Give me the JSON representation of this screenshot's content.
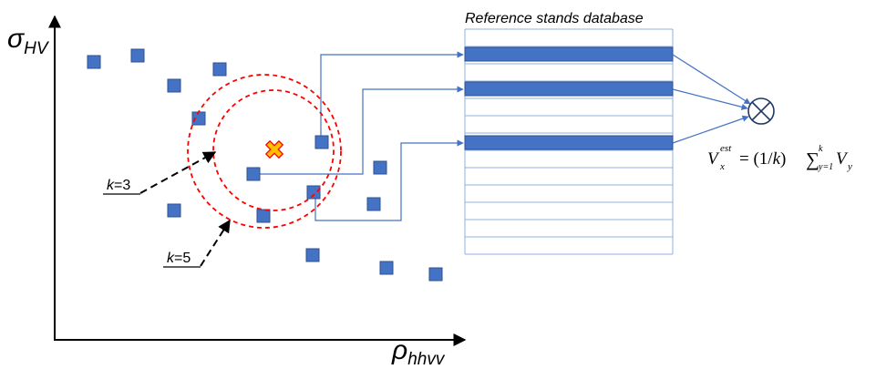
{
  "axes": {
    "y_symbol": "σ",
    "y_subscript": "HV",
    "x_symbol": "ρ",
    "x_subscript": "hhvv"
  },
  "database": {
    "title": "Reference stands database",
    "row_count": 13,
    "highlighted_rows": [
      1,
      3,
      7
    ]
  },
  "k_labels": [
    {
      "italic": "k",
      "rest": "=3"
    },
    {
      "italic": "k",
      "rest": "=5"
    }
  ],
  "formula": {
    "lhs": "V",
    "lhs_sub": "x",
    "lhs_sup": "est",
    "rhs_prefix": "= (1/",
    "rhs_k": "k",
    "rhs_close": ")",
    "sum": "∑",
    "sum_lower": "y=1",
    "sum_upper": "k",
    "term": "V",
    "term_sub": "y"
  },
  "combine_symbol": "⊗",
  "colors": {
    "point": "#4472c4",
    "point_stroke": "#2f528f",
    "bar": "#4472c4",
    "line": "#4472c4",
    "table_line": "#8fb0e0",
    "circle": "#ff0000",
    "query_fill": "#ffc000",
    "query_stroke": "#ff0000"
  }
}
